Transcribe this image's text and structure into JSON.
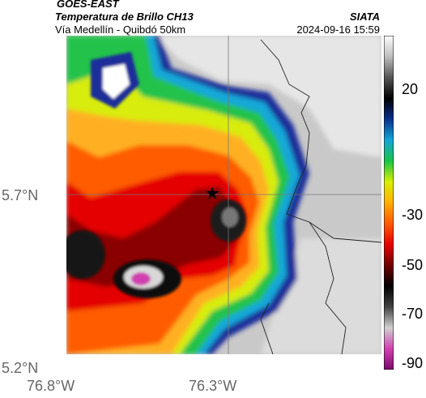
{
  "header": {
    "satellite": "GOES-EAST",
    "product": "Temperatura de Brillo CH13",
    "route": "Vía Medellín - Quibdó 50km",
    "org": "SIATA",
    "timestamp": "2024-09-16 15:59"
  },
  "axes": {
    "lat_labels": [
      "5.7°N",
      "5.2°N"
    ],
    "lon_labels": [
      "76.8°W",
      "76.3°W"
    ]
  },
  "colorbar": {
    "ticks": [
      "20",
      "-30",
      "-50",
      "-70",
      "-90"
    ],
    "stops": [
      "#ffffff",
      "#bdbdbd",
      "#555555",
      "#000000",
      "#0a2f8a",
      "#14a6d6",
      "#19c24a",
      "#d6f000",
      "#ffb000",
      "#ff5a00",
      "#e60000",
      "#700000",
      "#000000",
      "#444444",
      "#d0d0d0",
      "#d040b0",
      "#7a0b6a"
    ]
  },
  "legend_symbols": [
    "star-marker"
  ]
}
